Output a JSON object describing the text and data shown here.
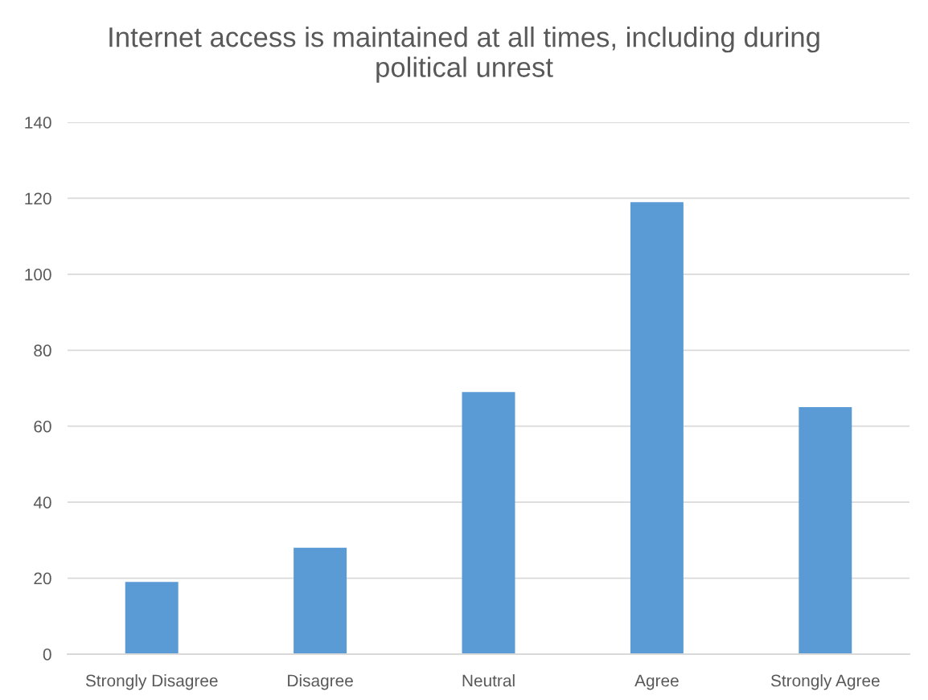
{
  "chart_data": {
    "type": "bar",
    "title": "Internet access is maintained at all times, including during political unrest",
    "categories": [
      "Strongly Disagree",
      "Disagree",
      "Neutral",
      "Agree",
      "Strongly Agree"
    ],
    "values": [
      19,
      28,
      69,
      119,
      65
    ],
    "color": "#5b9bd5",
    "ylim": [
      0,
      140
    ],
    "yticks": [
      0,
      20,
      40,
      60,
      80,
      100,
      120,
      140
    ],
    "grid": "y",
    "legend": false
  }
}
